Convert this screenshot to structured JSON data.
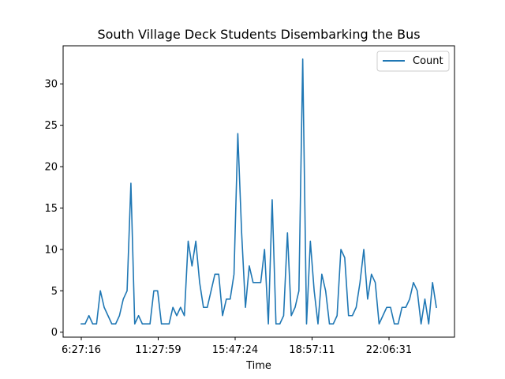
{
  "chart_data": {
    "type": "line",
    "title": "South Village Deck Students Disembarking the Bus",
    "xlabel": "Time",
    "ylabel": "",
    "x_tick_labels": [
      "6:27:16",
      "11:27:59",
      "15:47:24",
      "18:57:11",
      "22:06:31"
    ],
    "y_ticks": [
      0,
      5,
      10,
      15,
      20,
      25,
      30
    ],
    "ylim": [
      -0.6,
      34.6
    ],
    "grid": false,
    "legend_position": "top-right",
    "series": [
      {
        "name": "Count",
        "color": "#1f77b4",
        "values": [
          1,
          1,
          2,
          1,
          1,
          5,
          3,
          2,
          1,
          1,
          2,
          4,
          5,
          18,
          1,
          2,
          1,
          1,
          1,
          5,
          5,
          1,
          1,
          1,
          3,
          2,
          3,
          2,
          11,
          8,
          11,
          6,
          3,
          3,
          5,
          7,
          7,
          2,
          4,
          4,
          7,
          24,
          12,
          3,
          8,
          6,
          6,
          6,
          10,
          1,
          16,
          1,
          1,
          2,
          12,
          2,
          3,
          5,
          33,
          1,
          11,
          5,
          1,
          7,
          5,
          1,
          1,
          2,
          10,
          9,
          2,
          2,
          3,
          6,
          10,
          4,
          7,
          6,
          1,
          2,
          3,
          3,
          1,
          1,
          3,
          3,
          4,
          6,
          5,
          1,
          4,
          1,
          6,
          3
        ]
      }
    ]
  }
}
